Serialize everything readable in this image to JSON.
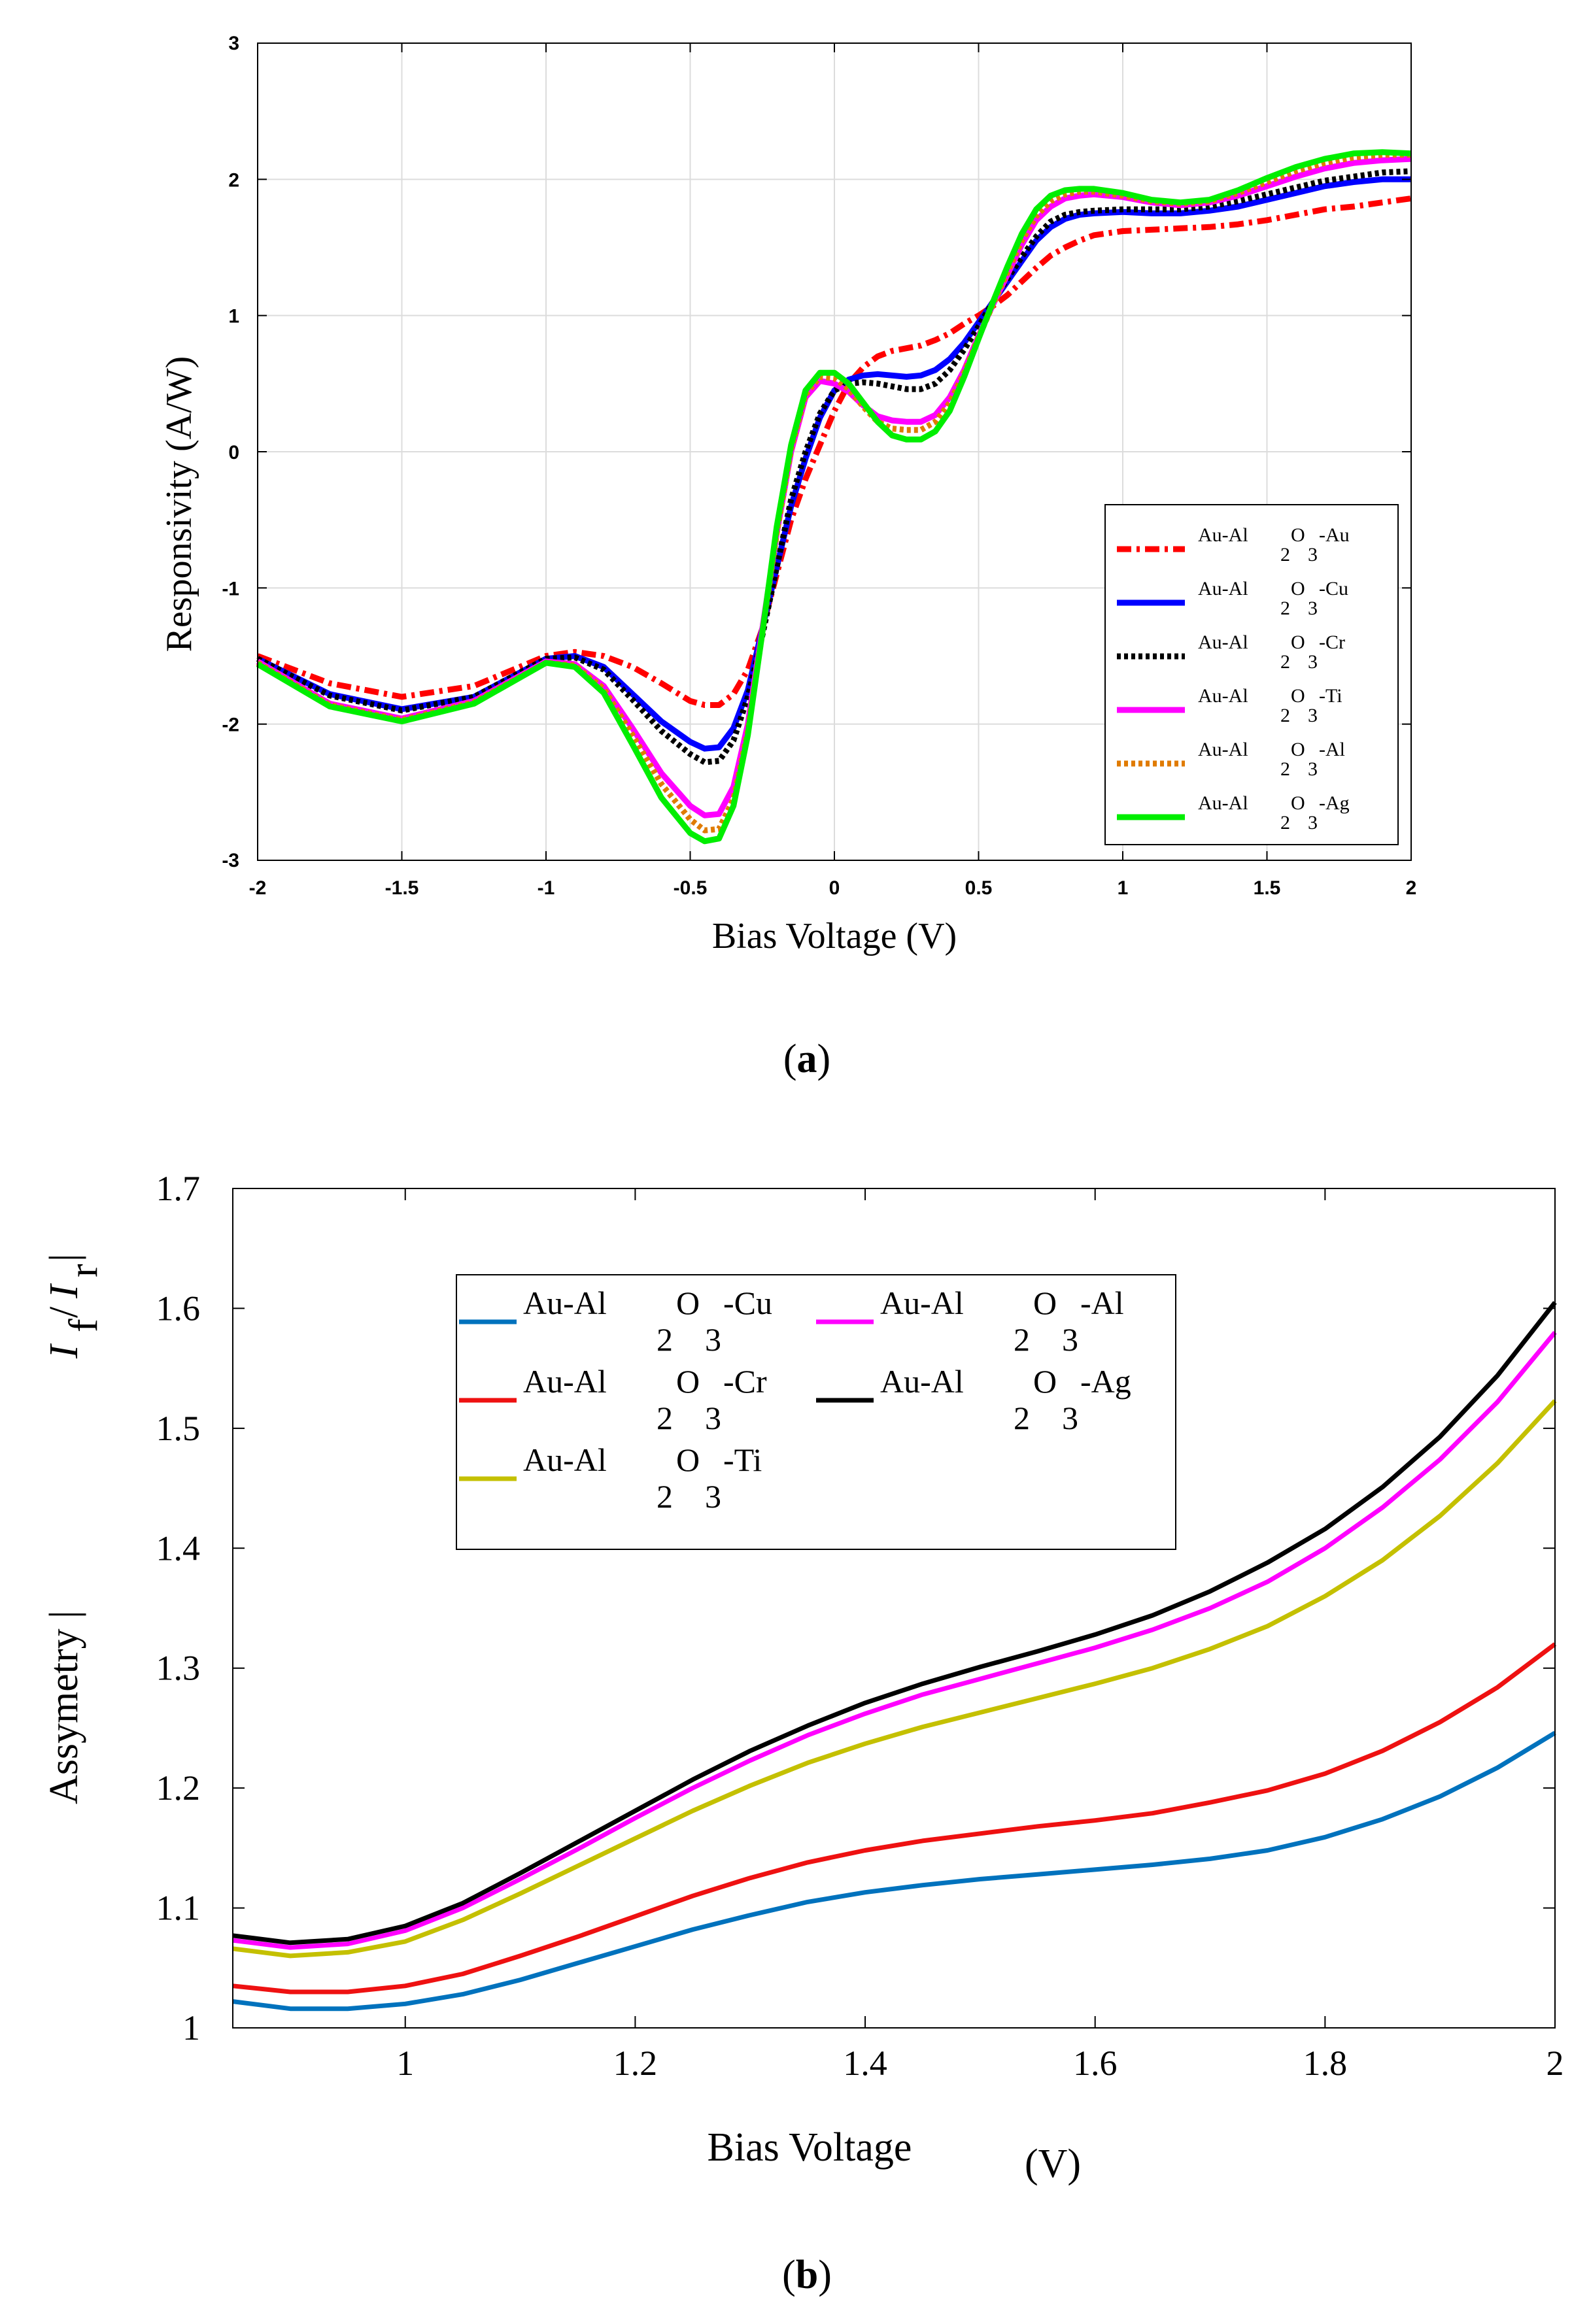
{
  "chart_data": [
    {
      "id": "a",
      "type": "line",
      "panel_label": "(a)",
      "xlabel": "Bias Voltage (V)",
      "ylabel": "Responsivity (A/W)",
      "xlim": [
        -2,
        2
      ],
      "ylim": [
        -3,
        3
      ],
      "xticks": [
        -2,
        -1.5,
        -1,
        -0.5,
        0,
        0.5,
        1,
        1.5,
        2
      ],
      "xtick_labels": [
        "-2",
        "-1.5",
        "-1",
        "-0.5",
        "0",
        "0.5",
        "1",
        "1.5",
        "2"
      ],
      "yticks": [
        -3,
        -2,
        -1,
        0,
        1,
        2,
        3
      ],
      "ytick_labels": [
        "-3",
        "-2",
        "-1",
        "0",
        "1",
        "2",
        "3"
      ],
      "grid": true,
      "legend_position": "lower-right",
      "x": [
        -2.0,
        -1.75,
        -1.5,
        -1.25,
        -1.0,
        -0.9,
        -0.8,
        -0.7,
        -0.6,
        -0.5,
        -0.45,
        -0.4,
        -0.35,
        -0.3,
        -0.25,
        -0.2,
        -0.15,
        -0.1,
        -0.05,
        0.0,
        0.05,
        0.1,
        0.15,
        0.2,
        0.25,
        0.3,
        0.35,
        0.4,
        0.45,
        0.5,
        0.55,
        0.6,
        0.65,
        0.7,
        0.75,
        0.8,
        0.85,
        0.9,
        1.0,
        1.1,
        1.2,
        1.3,
        1.4,
        1.5,
        1.6,
        1.7,
        1.8,
        1.9,
        2.0
      ],
      "series": [
        {
          "name": "Au-Al2O3-Au",
          "legend_parts": [
            "Au-Al",
            "2",
            "O",
            "3",
            "-Au"
          ],
          "color": "#ff0000",
          "dash": "dashdot",
          "values": [
            -1.5,
            -1.7,
            -1.8,
            -1.72,
            -1.5,
            -1.47,
            -1.5,
            -1.58,
            -1.7,
            -1.83,
            -1.86,
            -1.86,
            -1.78,
            -1.6,
            -1.3,
            -0.9,
            -0.5,
            -0.2,
            0.05,
            0.3,
            0.5,
            0.62,
            0.7,
            0.74,
            0.76,
            0.78,
            0.82,
            0.87,
            0.94,
            1.0,
            1.07,
            1.15,
            1.25,
            1.35,
            1.44,
            1.5,
            1.55,
            1.59,
            1.62,
            1.63,
            1.64,
            1.65,
            1.67,
            1.7,
            1.74,
            1.78,
            1.8,
            1.83,
            1.86
          ]
        },
        {
          "name": "Au-Al2O3-Cu",
          "legend_parts": [
            "Au-Al",
            "2",
            "O",
            "3",
            "-Cu"
          ],
          "color": "#0000ff",
          "dash": "solid",
          "values": [
            -1.52,
            -1.78,
            -1.89,
            -1.8,
            -1.52,
            -1.5,
            -1.58,
            -1.78,
            -1.98,
            -2.13,
            -2.18,
            -2.17,
            -2.03,
            -1.75,
            -1.3,
            -0.85,
            -0.4,
            -0.05,
            0.25,
            0.45,
            0.53,
            0.56,
            0.57,
            0.56,
            0.55,
            0.56,
            0.6,
            0.68,
            0.8,
            0.95,
            1.1,
            1.25,
            1.4,
            1.55,
            1.65,
            1.71,
            1.74,
            1.75,
            1.76,
            1.75,
            1.75,
            1.77,
            1.8,
            1.85,
            1.9,
            1.95,
            1.98,
            2.0,
            2.0
          ]
        },
        {
          "name": "Au-Al2O3-Cr",
          "legend_parts": [
            "Au-Al",
            "2",
            "O",
            "3",
            "-Cr"
          ],
          "color": "#000000",
          "dash": "dotted",
          "values": [
            -1.52,
            -1.79,
            -1.9,
            -1.8,
            -1.52,
            -1.51,
            -1.6,
            -1.82,
            -2.05,
            -2.22,
            -2.28,
            -2.27,
            -2.12,
            -1.8,
            -1.35,
            -0.85,
            -0.35,
            0.0,
            0.28,
            0.45,
            0.5,
            0.51,
            0.5,
            0.48,
            0.46,
            0.46,
            0.5,
            0.6,
            0.75,
            0.92,
            1.1,
            1.27,
            1.43,
            1.58,
            1.69,
            1.74,
            1.76,
            1.77,
            1.78,
            1.78,
            1.78,
            1.8,
            1.84,
            1.89,
            1.94,
            1.99,
            2.02,
            2.05,
            2.06
          ]
        },
        {
          "name": "Au-Al2O3-Ti",
          "legend_parts": [
            "Au-Al",
            "2",
            "O",
            "3",
            "-Ti"
          ],
          "color": "#ff00ff",
          "dash": "solid",
          "values": [
            -1.54,
            -1.85,
            -1.96,
            -1.83,
            -1.54,
            -1.56,
            -1.72,
            -2.03,
            -2.36,
            -2.6,
            -2.67,
            -2.66,
            -2.46,
            -2.0,
            -1.3,
            -0.6,
            0.0,
            0.4,
            0.52,
            0.5,
            0.44,
            0.34,
            0.26,
            0.23,
            0.22,
            0.22,
            0.27,
            0.4,
            0.6,
            0.85,
            1.08,
            1.3,
            1.52,
            1.7,
            1.8,
            1.86,
            1.88,
            1.89,
            1.87,
            1.83,
            1.81,
            1.83,
            1.88,
            1.95,
            2.02,
            2.08,
            2.12,
            2.14,
            2.15
          ]
        },
        {
          "name": "Au-Al2O3-Al",
          "legend_parts": [
            "Au-Al",
            "2",
            "O",
            "3",
            "-Al"
          ],
          "color": "#e07b00",
          "dash": "dotted",
          "values": [
            -1.55,
            -1.86,
            -1.97,
            -1.84,
            -1.55,
            -1.57,
            -1.74,
            -2.08,
            -2.44,
            -2.7,
            -2.78,
            -2.77,
            -2.55,
            -2.05,
            -1.33,
            -0.6,
            0.02,
            0.42,
            0.55,
            0.54,
            0.46,
            0.33,
            0.22,
            0.17,
            0.16,
            0.16,
            0.22,
            0.36,
            0.58,
            0.84,
            1.08,
            1.32,
            1.55,
            1.73,
            1.84,
            1.89,
            1.91,
            1.91,
            1.88,
            1.84,
            1.82,
            1.84,
            1.9,
            1.98,
            2.06,
            2.12,
            2.16,
            2.18,
            2.18
          ]
        },
        {
          "name": "Au-Al2O3-Ag",
          "legend_parts": [
            "Au-Al",
            "2",
            "O",
            "3",
            "-Ag"
          ],
          "color": "#00ee00",
          "dash": "solid",
          "values": [
            -1.56,
            -1.87,
            -1.98,
            -1.85,
            -1.55,
            -1.58,
            -1.77,
            -2.15,
            -2.54,
            -2.8,
            -2.86,
            -2.84,
            -2.6,
            -2.08,
            -1.33,
            -0.55,
            0.05,
            0.45,
            0.58,
            0.58,
            0.5,
            0.36,
            0.22,
            0.12,
            0.09,
            0.09,
            0.15,
            0.3,
            0.55,
            0.83,
            1.1,
            1.36,
            1.6,
            1.78,
            1.88,
            1.92,
            1.93,
            1.93,
            1.9,
            1.85,
            1.83,
            1.85,
            1.92,
            2.01,
            2.09,
            2.15,
            2.19,
            2.2,
            2.19
          ]
        }
      ]
    },
    {
      "id": "b",
      "type": "line",
      "panel_label": "(b)",
      "xlabel": "Bias Voltage",
      "xlabel_unit": "(V)",
      "ylabel": "Assymetry |",
      "ylabel_ratio": [
        "I",
        "f",
        "/",
        "I",
        "r",
        "|"
      ],
      "xlim": [
        0.85,
        2.0
      ],
      "ylim": [
        1.0,
        1.7
      ],
      "xticks": [
        1,
        1.2,
        1.4,
        1.6,
        1.8,
        2
      ],
      "xtick_labels": [
        "1",
        "1.2",
        "1.4",
        "1.6",
        "1.8",
        "2"
      ],
      "yticks": [
        1,
        1.1,
        1.2,
        1.3,
        1.4,
        1.5,
        1.6,
        1.7
      ],
      "ytick_labels": [
        "1",
        "1.1",
        "1.2",
        "1.3",
        "1.4",
        "1.5",
        "1.6",
        "1.7"
      ],
      "grid": false,
      "legend_position": "top-left",
      "x": [
        0.85,
        0.9,
        0.95,
        1.0,
        1.05,
        1.1,
        1.15,
        1.2,
        1.25,
        1.3,
        1.35,
        1.4,
        1.45,
        1.5,
        1.55,
        1.6,
        1.65,
        1.7,
        1.75,
        1.8,
        1.85,
        1.9,
        1.95,
        2.0
      ],
      "series": [
        {
          "name": "Au-Al2O3-Cu",
          "legend_parts": [
            "Au-Al",
            "2",
            "O",
            "3",
            "-Cu"
          ],
          "color": "#0072bd",
          "values": [
            1.022,
            1.016,
            1.016,
            1.02,
            1.028,
            1.04,
            1.054,
            1.068,
            1.082,
            1.094,
            1.105,
            1.113,
            1.119,
            1.124,
            1.128,
            1.132,
            1.136,
            1.141,
            1.148,
            1.159,
            1.174,
            1.193,
            1.217,
            1.246
          ]
        },
        {
          "name": "Au-Al2O3-Cr",
          "legend_parts": [
            "Au-Al",
            "2",
            "O",
            "3",
            "-Cr"
          ],
          "color": "#ee1111",
          "values": [
            1.035,
            1.03,
            1.03,
            1.035,
            1.045,
            1.06,
            1.076,
            1.093,
            1.11,
            1.125,
            1.138,
            1.148,
            1.156,
            1.162,
            1.168,
            1.173,
            1.179,
            1.188,
            1.198,
            1.212,
            1.231,
            1.255,
            1.284,
            1.32
          ]
        },
        {
          "name": "Au-Al2O3-Ti",
          "legend_parts": [
            "Au-Al",
            "2",
            "O",
            "3",
            "-Ti"
          ],
          "color": "#c4c000",
          "values": [
            1.066,
            1.06,
            1.063,
            1.072,
            1.09,
            1.112,
            1.135,
            1.158,
            1.181,
            1.202,
            1.221,
            1.237,
            1.251,
            1.263,
            1.275,
            1.287,
            1.3,
            1.316,
            1.335,
            1.36,
            1.39,
            1.427,
            1.471,
            1.523
          ]
        },
        {
          "name": "Au-Al2O3-Al",
          "legend_parts": [
            "Au-Al",
            "2",
            "O",
            "3",
            "-Al"
          ],
          "color": "#ff00ff",
          "values": [
            1.073,
            1.067,
            1.07,
            1.081,
            1.1,
            1.124,
            1.149,
            1.175,
            1.2,
            1.223,
            1.244,
            1.262,
            1.278,
            1.291,
            1.304,
            1.317,
            1.332,
            1.35,
            1.372,
            1.4,
            1.434,
            1.474,
            1.522,
            1.58
          ]
        },
        {
          "name": "Au-Al2O3-Ag",
          "legend_parts": [
            "Au-Al",
            "2",
            "O",
            "3",
            "-Ag"
          ],
          "color": "#000000",
          "values": [
            1.077,
            1.071,
            1.074,
            1.085,
            1.104,
            1.129,
            1.155,
            1.181,
            1.207,
            1.231,
            1.252,
            1.271,
            1.287,
            1.301,
            1.314,
            1.328,
            1.344,
            1.364,
            1.388,
            1.416,
            1.451,
            1.493,
            1.544,
            1.605
          ]
        }
      ]
    }
  ]
}
